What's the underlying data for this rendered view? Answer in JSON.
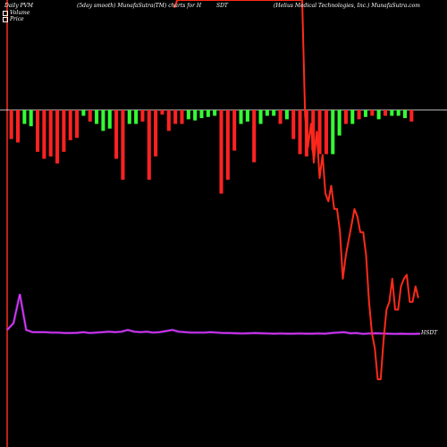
{
  "header": {
    "left": "Daily PVM",
    "center": "(5day smooth) MunafaSutra(TM) charts for H",
    "ticker": "SDT",
    "right": "(Helius Medical Technologies, Inc.) MunafaSutra.com"
  },
  "legend": {
    "volume_label": "Volume",
    "price_label": "Price"
  },
  "end_label": "HSDT",
  "colors": {
    "background": "#000000",
    "price_line": "#ff2a1a",
    "pvm_line": "#ff33ff",
    "pvm_glow": "#8844ff",
    "volume_up": "#33ff33",
    "volume_down": "#ff2222",
    "baseline": "#ffffff"
  },
  "chart_data": {
    "type": "line",
    "grid": false,
    "volume_bars": {
      "direction": [
        -1,
        -1,
        1,
        1,
        -1,
        -1,
        -1,
        -1,
        -1,
        -1,
        -1,
        1,
        -1,
        1,
        1,
        1,
        -1,
        -1,
        1,
        1,
        -1,
        -1,
        -1,
        -1,
        -1,
        -1,
        -1,
        1,
        1,
        1,
        1,
        1,
        -1,
        -1,
        -1,
        1,
        1,
        -1,
        1,
        1,
        1,
        -1,
        1,
        -1,
        -1,
        -1,
        -1,
        -1,
        -1,
        1,
        1,
        -1,
        1,
        -1,
        1,
        -1,
        1,
        -1,
        1,
        1,
        1,
        -1
      ],
      "magnitude": [
        0.25,
        0.28,
        0.12,
        0.14,
        0.36,
        0.42,
        0.4,
        0.46,
        0.36,
        0.26,
        0.24,
        0.05,
        0.1,
        0.12,
        0.18,
        0.16,
        0.42,
        0.6,
        0.12,
        0.12,
        0.1,
        0.6,
        0.4,
        0.04,
        0.18,
        0.12,
        0.12,
        0.08,
        0.09,
        0.07,
        0.06,
        0.05,
        0.72,
        0.6,
        0.35,
        0.12,
        0.1,
        0.45,
        0.12,
        0.05,
        0.05,
        0.12,
        0.08,
        0.25,
        0.38,
        0.4,
        0.35,
        0.38,
        0.38,
        0.38,
        0.22,
        0.12,
        0.12,
        0.08,
        0.06,
        0.05,
        0.08,
        0.05,
        0.05,
        0.05,
        0.07,
        0.1
      ]
    },
    "price": [
      98,
      100,
      100,
      100,
      100,
      100,
      100,
      100,
      100,
      100,
      100,
      100,
      100,
      100,
      100,
      100,
      100,
      100,
      100,
      100,
      100,
      100,
      100,
      100,
      100,
      100,
      100,
      100,
      100,
      100,
      100,
      100,
      100,
      100,
      100,
      100,
      100,
      100,
      100,
      100,
      100,
      100,
      100,
      100,
      100,
      70,
      62,
      68,
      58,
      66,
      54,
      60,
      50,
      48,
      52,
      46,
      46,
      40,
      28,
      34,
      38,
      42,
      46,
      44,
      40,
      40,
      34,
      22,
      14,
      10,
      2,
      2,
      12,
      20,
      22,
      28,
      20,
      20,
      26,
      28,
      29,
      22,
      22,
      26,
      23
    ],
    "pvm": [
      0.02,
      0.05,
      0.18,
      0.02,
      0.01,
      0.01,
      0.01,
      0.008,
      0.008,
      0.006,
      0.006,
      0.007,
      0.01,
      0.006,
      0.008,
      0.01,
      0.012,
      0.01,
      0.012,
      0.02,
      0.012,
      0.01,
      0.012,
      0.008,
      0.01,
      0.015,
      0.02,
      0.012,
      0.01,
      0.008,
      0.008,
      0.008,
      0.01,
      0.008,
      0.006,
      0.006,
      0.005,
      0.004,
      0.005,
      0.006,
      0.005,
      0.004,
      0.003,
      0.004,
      0.003,
      0.003,
      0.004,
      0.003,
      0.003,
      0.004,
      0.003,
      0.006,
      0.008,
      0.01,
      0.005,
      0.006,
      0.002,
      0.004,
      0.005,
      0.004,
      0.003,
      0.002,
      0.003,
      0.002,
      0.002,
      0.003
    ]
  }
}
